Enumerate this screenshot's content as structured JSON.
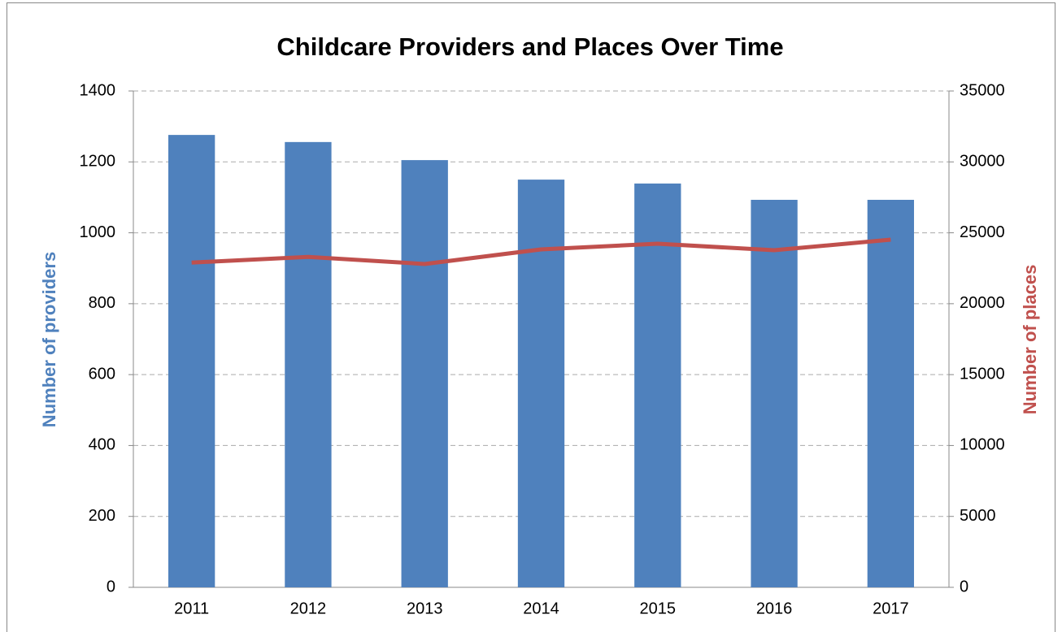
{
  "chart_data": {
    "type": "bar",
    "title": "Childcare Providers and Places Over Time",
    "y_label": "Number of providers",
    "y2_label": "Number of places",
    "categories": [
      "2011",
      "2012",
      "2013",
      "2014",
      "2015",
      "2016",
      "2017"
    ],
    "series": [
      {
        "name": "Number of providers",
        "type": "bar",
        "color": "#4f81bd",
        "values": [
          1276,
          1256,
          1205,
          1150,
          1139,
          1093,
          1093
        ]
      },
      {
        "name": "Number of places",
        "type": "line",
        "axis": "y2",
        "color": "#c0504d",
        "values": [
          22900,
          23300,
          22800,
          23830,
          24230,
          23770,
          24520
        ]
      }
    ],
    "ylim": [
      0,
      1400
    ],
    "yticks": [
      0,
      200,
      400,
      600,
      800,
      1000,
      1200,
      1400
    ],
    "y2lim": [
      0,
      35000
    ],
    "y2ticks": [
      0,
      5000,
      10000,
      15000,
      20000,
      25000,
      30000,
      35000
    ],
    "grid": true
  }
}
